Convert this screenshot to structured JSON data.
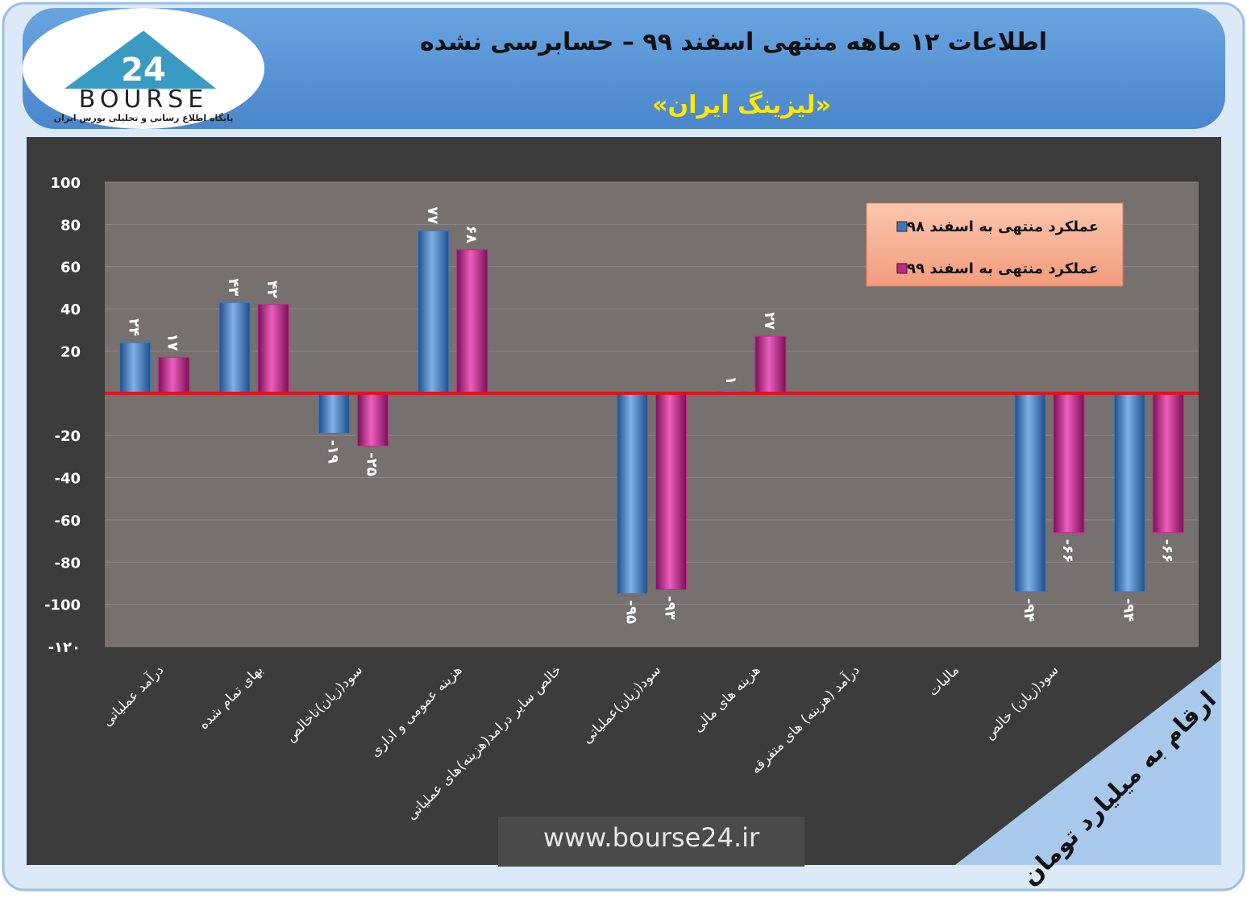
{
  "logo": {
    "mark": "24",
    "name": "BOURSE",
    "tagline": "پایگاه اطلاع رسانی و تحلیلی بورس ایران"
  },
  "website": "www.bourse24.ir",
  "unit_note": "ارقام به میلیارد تومان",
  "chart_data": {
    "type": "bar",
    "title": "اطلاعات ۱۲ ماهه منتهی اسفند ۹۹ – حسابرسی نشده",
    "subtitle": "«لیزینگ ایران»",
    "categories": [
      "درآمد عملیاتی",
      "بهای تمام شده",
      "سود(زیان)ناخالص",
      "هزینه عمومی و اداری",
      "خالص سایر درامد(هزینه)های عملیاتی",
      "سود(زیان)عملیاتی",
      "هزینه های مالی",
      "درآمد (هزینه) های متفرقه",
      "مالیات",
      "سود(زیان) خالص",
      null
    ],
    "series": [
      {
        "name": "عملکرد منتهی به اسفند ۹۸",
        "color": "#3d78bd",
        "values": [
          24,
          43,
          -19,
          77,
          null,
          -95,
          1,
          null,
          null,
          -94,
          -94
        ],
        "value_labels": [
          "۲۴",
          "۴۳",
          "-۱۹",
          "۷۷",
          null,
          "-۹۵",
          "۱",
          null,
          null,
          "-۹۴",
          "-۹۴"
        ]
      },
      {
        "name": "عملکرد منتهی به اسفند ۹۹",
        "color": "#c2288f",
        "values": [
          17,
          42,
          -25,
          68,
          null,
          -93,
          27,
          null,
          null,
          -66,
          -66
        ],
        "value_labels": [
          "۱۷",
          "۴۲",
          "-۲۵",
          "۶۸",
          null,
          "-۹۳",
          "۲۷",
          null,
          null,
          "-۶۶",
          "-۶۶"
        ]
      }
    ],
    "ylim": [
      -120,
      100
    ],
    "yticks": [
      100,
      80,
      60,
      40,
      20,
      -20,
      -40,
      -60,
      -80,
      -100,
      {
        "value": -120,
        "label": "-۱۲۰"
      }
    ],
    "grid": true,
    "legend": "top-right",
    "zero_line_color": "#e0141e"
  }
}
